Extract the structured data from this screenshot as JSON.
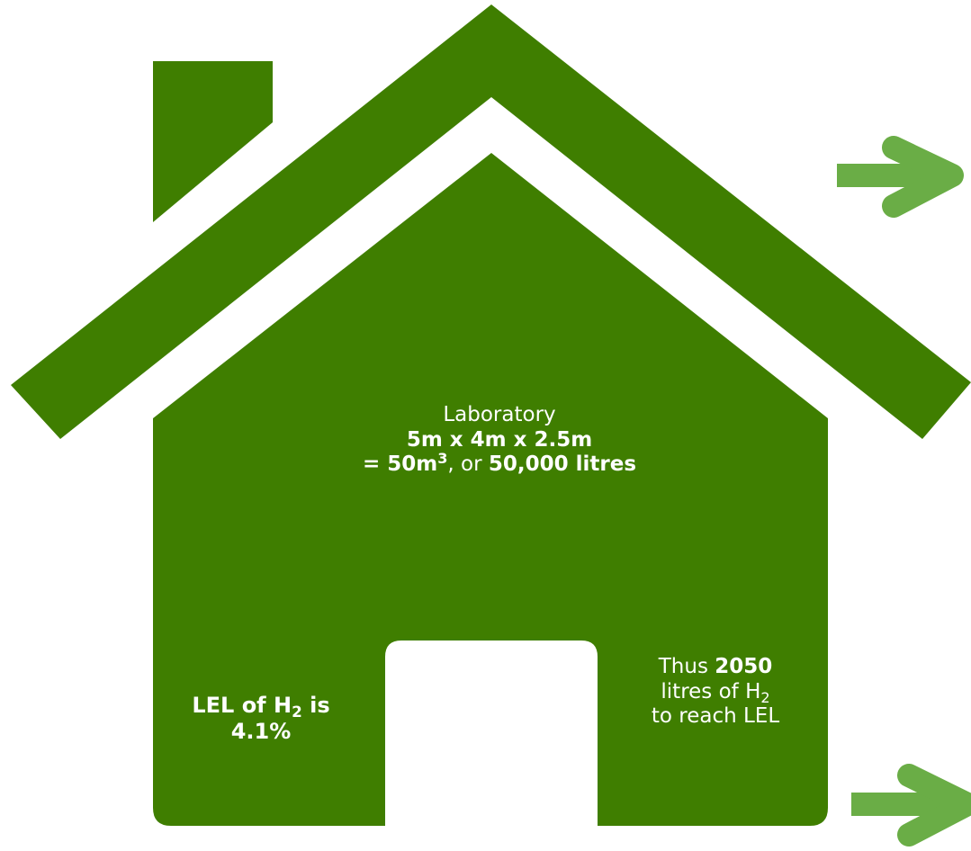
{
  "colors": {
    "house": "#3f7e00",
    "arrow": "#6aad46",
    "background": "#ffffff",
    "text": "#ffffff"
  },
  "icons": {
    "house": "house-icon",
    "arrows": [
      "arrow-right-icon",
      "arrow-right-icon"
    ]
  },
  "laboratory": {
    "title": "Laboratory",
    "dimensions": "5m x 4m x 2.5m",
    "volume_prefix": "= 50m",
    "volume_exponent": "3",
    "volume_sep": ", or ",
    "volume_litres": "50,000 litres"
  },
  "lel": {
    "part1": "LEL of H",
    "sub": "2",
    "part2": " is",
    "value": "4.1%"
  },
  "result": {
    "thus": "Thus ",
    "amount": "2050",
    "litres_of": "litres of H",
    "sub": "2",
    "reach": "to reach LEL"
  }
}
